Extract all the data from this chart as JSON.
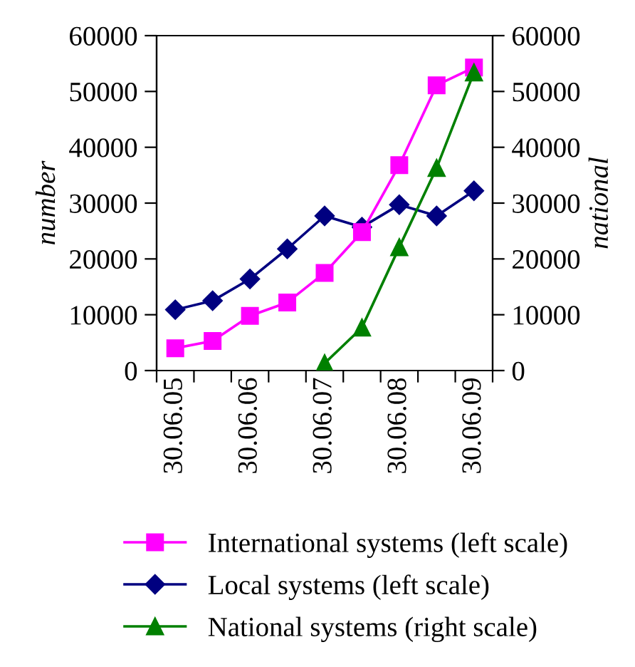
{
  "chart_data": {
    "type": "line",
    "ylabel": "number",
    "y2label": "national",
    "categories": [
      "30.06.05",
      null,
      "30.06.06",
      null,
      "30.06.07",
      null,
      "30.06.08",
      null,
      "30.06.09"
    ],
    "series": [
      {
        "name": "International systems (left scale)",
        "color": "#ff00ff",
        "marker": "square",
        "values": [
          4000,
          5300,
          9800,
          12200,
          17500,
          24800,
          36800,
          51100,
          54300
        ]
      },
      {
        "name": "Local systems (left scale)",
        "color": "#000080",
        "marker": "diamond",
        "values": [
          10900,
          12500,
          16400,
          21800,
          27700,
          25700,
          29700,
          27700,
          32200
        ]
      },
      {
        "name": "National systems (right scale)",
        "color": "#008000",
        "marker": "triangle",
        "axis": "y2",
        "values": [
          null,
          null,
          null,
          null,
          1300,
          7700,
          22100,
          36300,
          53400
        ]
      }
    ],
    "ylim": [
      0,
      60000
    ],
    "yticks": [
      0,
      10000,
      20000,
      30000,
      40000,
      50000,
      60000
    ],
    "y2lim": [
      0,
      60000
    ],
    "y2ticks": [
      0,
      10000,
      20000,
      30000,
      40000,
      50000,
      60000
    ],
    "grid": false,
    "legend": "bottom",
    "line_style": "solid"
  }
}
